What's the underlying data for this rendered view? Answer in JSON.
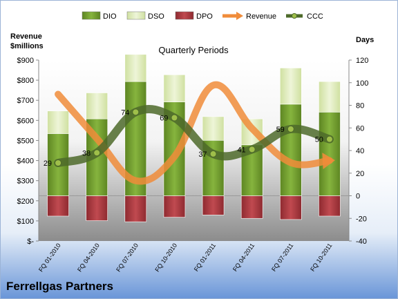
{
  "chart_data": {
    "type": "bar",
    "title": "Quarterly Periods",
    "company": "Ferrellgas Partners",
    "left_axis_title_line1": "Revenue",
    "left_axis_title_line2": "$millions",
    "right_axis_title": "Days",
    "categories": [
      "FQ 01-2010",
      "FQ 04-2010",
      "FQ 07-2010",
      "FQ 10-2010",
      "FQ 01-2011",
      "FQ 04-2011",
      "FQ 07-2011",
      "FQ 10-2011"
    ],
    "left_ticks": [
      "$-",
      "$100",
      "$200",
      "$300",
      "$400",
      "$500",
      "$600",
      "$700",
      "$800",
      "$900"
    ],
    "left_range": [
      0,
      900
    ],
    "right_range": [
      -40,
      120
    ],
    "right_ticks": [
      -40,
      -20,
      0,
      20,
      40,
      60,
      80,
      100,
      120
    ],
    "series": [
      {
        "name": "DIO",
        "type": "stacked-bar",
        "color": "#6f9a2c",
        "values": [
          55,
          68,
          101,
          83,
          49,
          45,
          81,
          74
        ]
      },
      {
        "name": "DSO",
        "type": "stacked-bar",
        "color": "#d8e7b0",
        "values": [
          20,
          23,
          24,
          24,
          21,
          23,
          32,
          27
        ]
      },
      {
        "name": "DPO",
        "type": "negative-bar",
        "color": "#a6363c",
        "values": [
          -18,
          -22,
          -23,
          -19,
          -17,
          -20,
          -21,
          -18
        ]
      },
      {
        "name": "Revenue",
        "type": "line",
        "axis": "left",
        "color": "#f08c3a",
        "values": [
          730,
          510,
          300,
          420,
          775,
          560,
          390,
          400
        ]
      },
      {
        "name": "CCC",
        "type": "line",
        "axis": "right",
        "color": "#4d6a2a",
        "values": [
          29,
          38,
          74,
          69,
          37,
          41,
          59,
          50
        ]
      }
    ],
    "ccc_labels": [
      "29",
      "38",
      "74",
      "69",
      "37",
      "41",
      "59",
      "50"
    ],
    "grid": false,
    "legend_position": "top"
  }
}
